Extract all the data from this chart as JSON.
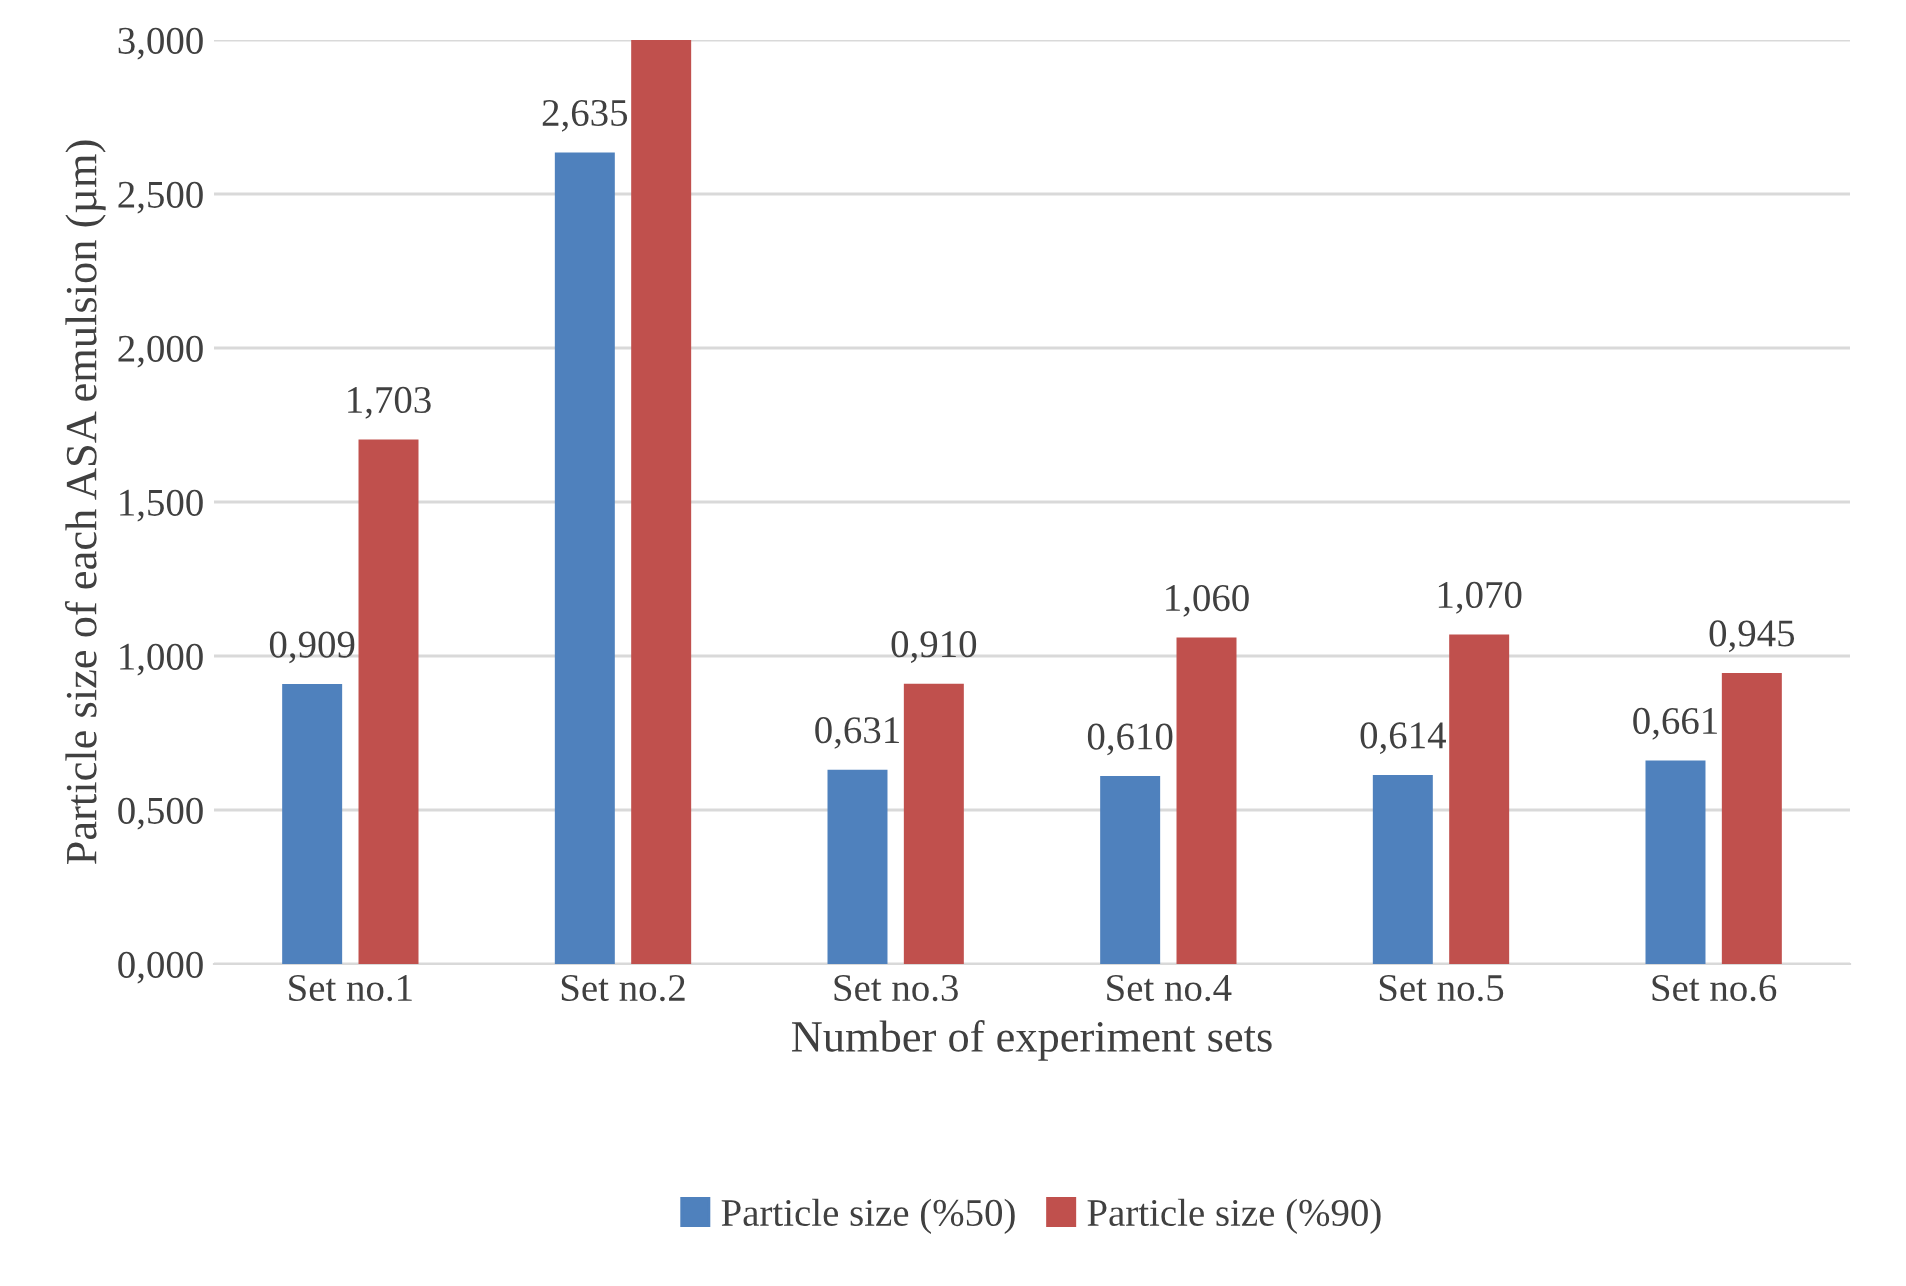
{
  "chart_data": {
    "type": "bar",
    "xlabel": "Number of experiment sets",
    "ylabel": "Particle size of each ASA emulsion (µm)",
    "categories": [
      "Set no.1",
      "Set no.2",
      "Set no.3",
      "Set no.4",
      "Set no.5",
      "Set no.6"
    ],
    "series": [
      {
        "name": "Particle size (%50)",
        "color": "#4f81bd",
        "values": [
          0.909,
          2.635,
          0.631,
          0.61,
          0.614,
          0.661
        ],
        "value_labels": [
          "0,909",
          "2,635",
          "0,631",
          "0,610",
          "0,614",
          "0,661"
        ]
      },
      {
        "name": "Particle size (%90)",
        "color": "#c0504d",
        "values": [
          1.703,
          3.0,
          0.91,
          1.06,
          1.07,
          0.945
        ],
        "value_labels": [
          "1,703",
          null,
          "0,910",
          "1,060",
          "1,070",
          "0,945"
        ]
      }
    ],
    "ylim": [
      0,
      3
    ],
    "yticks": [
      {
        "value": 0,
        "label": "0,000"
      },
      {
        "value": 0.5,
        "label": "0,500"
      },
      {
        "value": 1,
        "label": "1,000"
      },
      {
        "value": 1.5,
        "label": "1,500"
      },
      {
        "value": 2,
        "label": "2,000"
      },
      {
        "value": 2.5,
        "label": "2,500"
      },
      {
        "value": 3,
        "label": "3,000"
      }
    ],
    "grid": "y",
    "legend": "bottom"
  }
}
